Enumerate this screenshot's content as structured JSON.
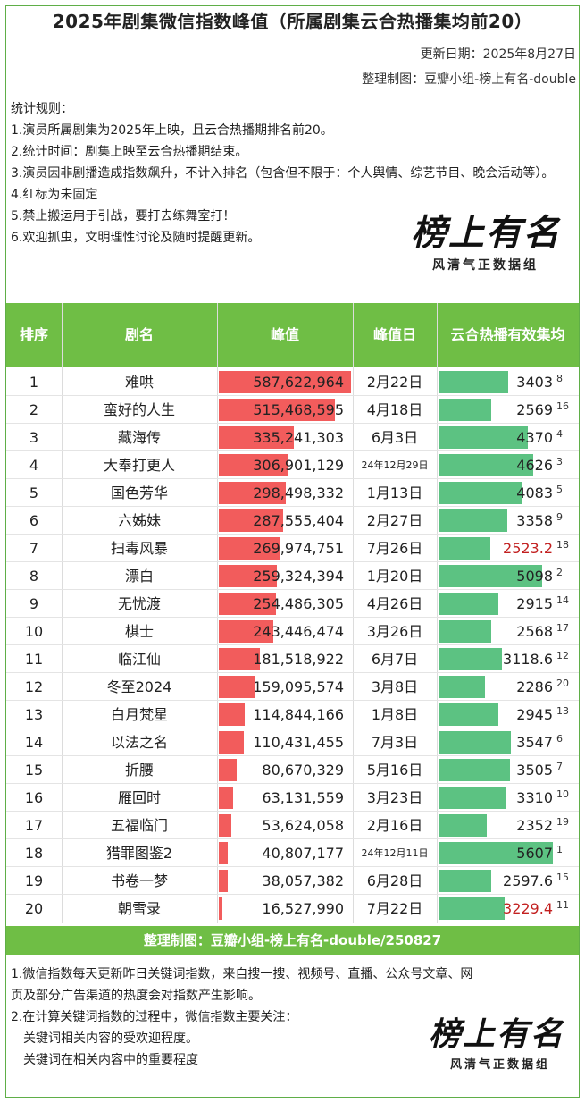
{
  "title": "2025年剧集微信指数峰值（所属剧集云合热播集均前20）",
  "update_date": "更新日期：2025年8月27日",
  "made_by": "整理制图：豆瓣小组-榜上有名-double",
  "rules": {
    "heading": "统计规则：",
    "r1": "1.演员所属剧集为2025年上映，且云合热播期排名前20。",
    "r2": "2.统计时间：剧集上映至云合热播期结束。",
    "r3": "3.演员因非剧播造成指数飙升，不计入排名（包含但不限于：个人舆情、综艺节目、晚会活动等）。",
    "r4": "4.红标为未固定",
    "r5": "5.禁止搬运用于引战，要打去练舞室打！",
    "r6": "6.欢迎抓虫，文明理性讨论及随时提醒更新。"
  },
  "logo": {
    "big": "榜上有名",
    "small": "风清气正数据组"
  },
  "columns": {
    "rank": "排序",
    "drama": "剧名",
    "peak": "峰值",
    "peak_day": "峰值日",
    "yunhe": "云合热播有效集均"
  },
  "chart_data": {
    "type": "table",
    "rows": [
      {
        "rank": "1",
        "drama": "难哄",
        "peak": 587622964,
        "peak_label": "587,622,964",
        "day": "2月22日",
        "yunhe": 3403,
        "yunhe_label": "3403",
        "yunhe_rank": "8",
        "unfixed": false
      },
      {
        "rank": "2",
        "drama": "蛮好的人生",
        "peak": 515468595,
        "peak_label": "515,468,595",
        "day": "4月18日",
        "yunhe": 2569,
        "yunhe_label": "2569",
        "yunhe_rank": "16",
        "unfixed": false
      },
      {
        "rank": "3",
        "drama": "藏海传",
        "peak": 335241303,
        "peak_label": "335,241,303",
        "day": "6月3日",
        "yunhe": 4370,
        "yunhe_label": "4370",
        "yunhe_rank": "4",
        "unfixed": false
      },
      {
        "rank": "4",
        "drama": "大奉打更人",
        "peak": 306901129,
        "peak_label": "306,901,129",
        "day": "24年12月29日",
        "yunhe": 4626,
        "yunhe_label": "4626",
        "yunhe_rank": "3",
        "unfixed": false
      },
      {
        "rank": "5",
        "drama": "国色芳华",
        "peak": 298498332,
        "peak_label": "298,498,332",
        "day": "1月13日",
        "yunhe": 4083,
        "yunhe_label": "4083",
        "yunhe_rank": "5",
        "unfixed": false
      },
      {
        "rank": "6",
        "drama": "六姊妹",
        "peak": 287555404,
        "peak_label": "287,555,404",
        "day": "2月27日",
        "yunhe": 3358,
        "yunhe_label": "3358",
        "yunhe_rank": "9",
        "unfixed": false
      },
      {
        "rank": "7",
        "drama": "扫毒风暴",
        "peak": 269974751,
        "peak_label": "269,974,751",
        "day": "7月26日",
        "yunhe": 2523.2,
        "yunhe_label": "2523.2",
        "yunhe_rank": "18",
        "unfixed": true
      },
      {
        "rank": "8",
        "drama": "漂白",
        "peak": 259324394,
        "peak_label": "259,324,394",
        "day": "1月20日",
        "yunhe": 5098,
        "yunhe_label": "5098",
        "yunhe_rank": "2",
        "unfixed": false
      },
      {
        "rank": "9",
        "drama": "无忧渡",
        "peak": 254486305,
        "peak_label": "254,486,305",
        "day": "4月26日",
        "yunhe": 2915,
        "yunhe_label": "2915",
        "yunhe_rank": "14",
        "unfixed": false
      },
      {
        "rank": "10",
        "drama": "棋士",
        "peak": 243446474,
        "peak_label": "243,446,474",
        "day": "3月26日",
        "yunhe": 2568,
        "yunhe_label": "2568",
        "yunhe_rank": "17",
        "unfixed": false
      },
      {
        "rank": "11",
        "drama": "临江仙",
        "peak": 181518922,
        "peak_label": "181,518,922",
        "day": "6月7日",
        "yunhe": 3118.6,
        "yunhe_label": "3118.6",
        "yunhe_rank": "12",
        "unfixed": false
      },
      {
        "rank": "12",
        "drama": "冬至2024",
        "peak": 159095574,
        "peak_label": "159,095,574",
        "day": "3月8日",
        "yunhe": 2286,
        "yunhe_label": "2286",
        "yunhe_rank": "20",
        "unfixed": false
      },
      {
        "rank": "13",
        "drama": "白月梵星",
        "peak": 114844166,
        "peak_label": "114,844,166",
        "day": "1月8日",
        "yunhe": 2945,
        "yunhe_label": "2945",
        "yunhe_rank": "13",
        "unfixed": false
      },
      {
        "rank": "14",
        "drama": "以法之名",
        "peak": 110431455,
        "peak_label": "110,431,455",
        "day": "7月3日",
        "yunhe": 3547,
        "yunhe_label": "3547",
        "yunhe_rank": "6",
        "unfixed": false
      },
      {
        "rank": "15",
        "drama": "折腰",
        "peak": 80670329,
        "peak_label": "80,670,329",
        "day": "5月16日",
        "yunhe": 3505,
        "yunhe_label": "3505",
        "yunhe_rank": "7",
        "unfixed": false
      },
      {
        "rank": "16",
        "drama": "雁回时",
        "peak": 63131559,
        "peak_label": "63,131,559",
        "day": "3月23日",
        "yunhe": 3310,
        "yunhe_label": "3310",
        "yunhe_rank": "10",
        "unfixed": false
      },
      {
        "rank": "17",
        "drama": "五福临门",
        "peak": 53624058,
        "peak_label": "53,624,058",
        "day": "2月16日",
        "yunhe": 2352,
        "yunhe_label": "2352",
        "yunhe_rank": "19",
        "unfixed": false
      },
      {
        "rank": "18",
        "drama": "猎罪图鉴2",
        "peak": 40807177,
        "peak_label": "40,807,177",
        "day": "24年12月11日",
        "yunhe": 5607,
        "yunhe_label": "5607",
        "yunhe_rank": "1",
        "unfixed": false
      },
      {
        "rank": "19",
        "drama": "书卷一梦",
        "peak": 38057382,
        "peak_label": "38,057,382",
        "day": "6月28日",
        "yunhe": 2597.6,
        "yunhe_label": "2597.6",
        "yunhe_rank": "15",
        "unfixed": false
      },
      {
        "rank": "20",
        "drama": "朝雪录",
        "peak": 16527990,
        "peak_label": "16,527,990",
        "day": "7月22日",
        "yunhe": 3229.4,
        "yunhe_label": "3229.4",
        "yunhe_rank": "11",
        "unfixed": true
      }
    ]
  },
  "footer": "整理制图：豆瓣小组-榜上有名-double/250827",
  "notes": {
    "n1": "1.微信指数每天更新昨日关键词指数，来自搜一搜、视频号、直播、公众号文章、网",
    "n1b": "页及部分广告渠道的热度会对指数产生影响。",
    "n2": "2.在计算关键词指数的过程中，微信指数主要关注：",
    "n3": "关键词相关内容的受欢迎程度。",
    "n4": "关键词在相关内容中的重要程度"
  },
  "colors": {
    "header_green": "#6fbe45",
    "bar_red": "#f25c5c",
    "bar_green": "#5cc282",
    "unfixed_red": "#c21f1f"
  }
}
